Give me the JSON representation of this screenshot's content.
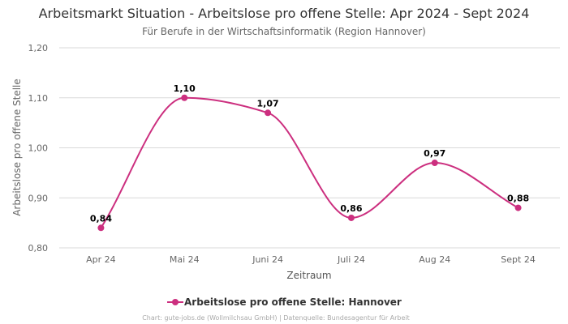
{
  "colors": {
    "series": "#cc2f7f",
    "grid": "#d9d9d9",
    "text": "#333333",
    "muted": "#666666",
    "footer": "#aaaaaa"
  },
  "footer": "Chart: gute-jobs.de (Wollmilchsau GmbH) | Datenquelle: Bundesagentur für Arbeit",
  "chart_data": {
    "type": "line",
    "title": "Arbeitsmarkt Situation - Arbeitslose pro offene Stelle: Apr 2024 - Sept 2024",
    "subtitle": "Für Berufe in der Wirtschaftsinformatik (Region Hannover)",
    "xlabel": "Zeitraum",
    "ylabel": "Arbeitslose pro offene Stelle",
    "categories": [
      "Apr 24",
      "Mai 24",
      "Juni 24",
      "Juli 24",
      "Aug 24",
      "Sept 24"
    ],
    "series": [
      {
        "name": "Arbeitslose pro offene Stelle: Hannover",
        "values": [
          0.84,
          1.1,
          1.07,
          0.86,
          0.97,
          0.88
        ]
      }
    ],
    "data_labels": [
      "0,84",
      "1,10",
      "1,07",
      "0,86",
      "0,97",
      "0,88"
    ],
    "ylim": [
      0.8,
      1.2
    ],
    "yticks": [
      0.8,
      0.9,
      1.0,
      1.1,
      1.2
    ],
    "ytick_labels": [
      "0,80",
      "0,90",
      "1,00",
      "1,10",
      "1,20"
    ],
    "grid": true,
    "legend_position": "bottom"
  }
}
